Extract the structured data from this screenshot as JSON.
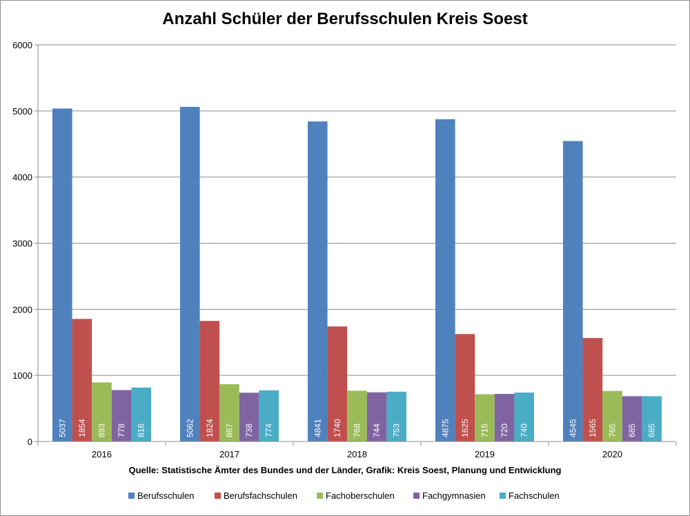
{
  "chart_data": {
    "type": "bar",
    "title": "Anzahl Schüler der Berufsschulen Kreis Soest",
    "source": "Quelle: Statistische Ämter des Bundes und der Länder, Grafik: Kreis Soest, Planung und Entwicklung",
    "categories": [
      "2016",
      "2017",
      "2018",
      "2019",
      "2020"
    ],
    "series": [
      {
        "name": "Berufsschulen",
        "color": "#4f81bd",
        "values": [
          5037,
          5062,
          4841,
          4875,
          4545
        ]
      },
      {
        "name": "Berufsfachschulen",
        "color": "#c0504d",
        "values": [
          1854,
          1824,
          1740,
          1625,
          1565
        ]
      },
      {
        "name": "Fachoberschulen",
        "color": "#9bbb59",
        "values": [
          893,
          867,
          768,
          715,
          765
        ]
      },
      {
        "name": "Fachgymnasien",
        "color": "#8064a2",
        "values": [
          778,
          738,
          744,
          720,
          685
        ]
      },
      {
        "name": "Fachschulen",
        "color": "#4bacc6",
        "values": [
          816,
          774,
          753,
          740,
          685
        ]
      }
    ],
    "ylim": [
      0,
      6000
    ],
    "yticks": [
      0,
      1000,
      2000,
      3000,
      4000,
      5000,
      6000
    ],
    "grid": true,
    "legend": "bottom",
    "data_labels": "inside-base-rotated"
  }
}
